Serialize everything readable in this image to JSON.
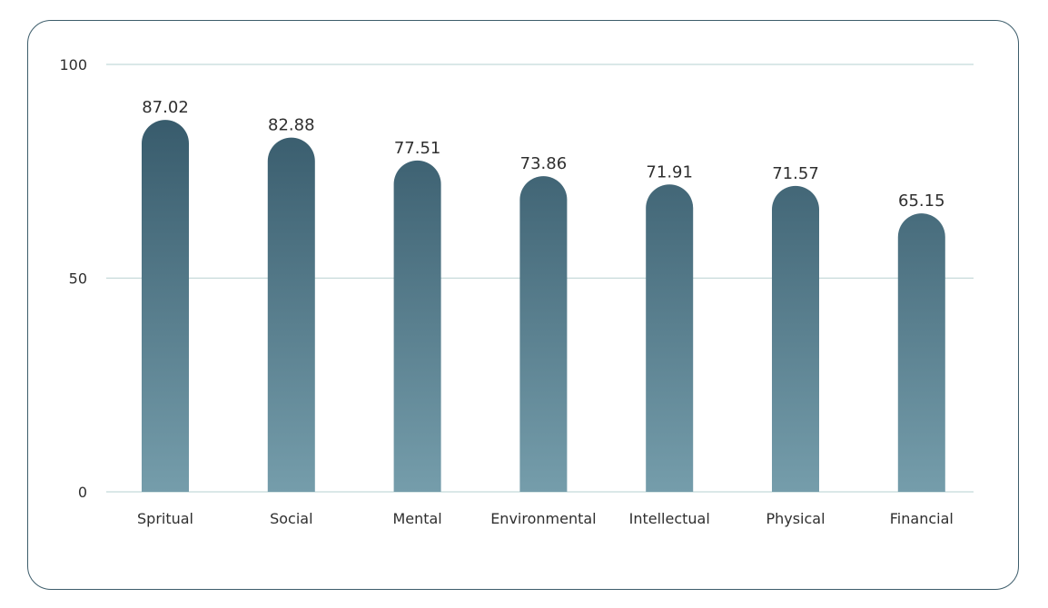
{
  "chart_data": {
    "type": "bar",
    "categories": [
      "Spritual",
      "Social",
      "Mental",
      "Environmental",
      "Intellectual",
      "Physical",
      "Financial"
    ],
    "values": [
      87.02,
      82.88,
      77.51,
      73.86,
      71.91,
      71.57,
      65.15
    ],
    "value_labels": [
      "87.02",
      "82.88",
      "77.51",
      "73.86",
      "71.91",
      "71.57",
      "65.15"
    ],
    "ylim": [
      0,
      100
    ],
    "yticks": [
      "0",
      "50",
      "100"
    ],
    "grid": true,
    "legend": "none",
    "colors": {
      "bar_top": "#36596a",
      "bar_bottom": "#759dab",
      "gridline": "#c4d9d9",
      "card_border": "#3d5d6b",
      "text": "#2f2f2f"
    }
  }
}
